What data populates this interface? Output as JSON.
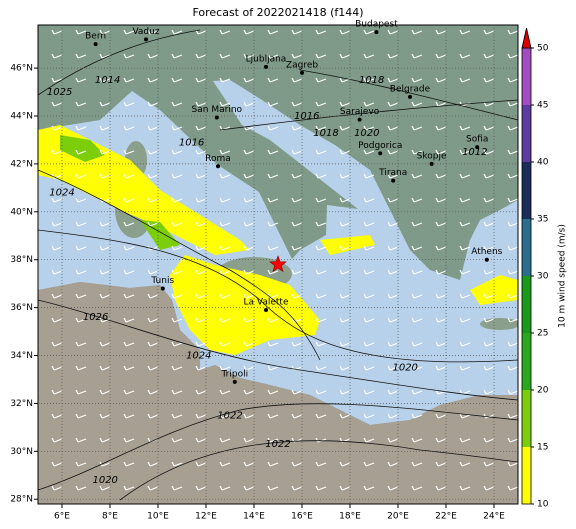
{
  "chart_data": {
    "type": "map",
    "title": "Forecast of 2022021418 (f144)",
    "xlim": [
      5,
      25
    ],
    "ylim": [
      27.8,
      47.8
    ],
    "xticks": [
      {
        "value": 6,
        "label": "6°E"
      },
      {
        "value": 8,
        "label": "8°E"
      },
      {
        "value": 10,
        "label": "10°E"
      },
      {
        "value": 12,
        "label": "12°E"
      },
      {
        "value": 14,
        "label": "14°E"
      },
      {
        "value": 16,
        "label": "16°E"
      },
      {
        "value": 18,
        "label": "18°E"
      },
      {
        "value": 20,
        "label": "20°E"
      },
      {
        "value": 22,
        "label": "22°E"
      },
      {
        "value": 24,
        "label": "24°E"
      }
    ],
    "yticks": [
      {
        "value": 28,
        "label": "28°N"
      },
      {
        "value": 30,
        "label": "30°N"
      },
      {
        "value": 32,
        "label": "32°N"
      },
      {
        "value": 34,
        "label": "34°N"
      },
      {
        "value": 36,
        "label": "36°N"
      },
      {
        "value": 38,
        "label": "38°N"
      },
      {
        "value": 40,
        "label": "40°N"
      },
      {
        "value": 42,
        "label": "42°N"
      },
      {
        "value": 44,
        "label": "44°N"
      },
      {
        "value": 46,
        "label": "46°N"
      }
    ],
    "grid": true,
    "colorbar": {
      "label": "10 m wind speed (m/s)",
      "ticks": [
        10,
        15,
        20,
        25,
        30,
        35,
        40,
        45,
        50
      ],
      "colors": [
        "#ffff00",
        "#7ccd0a",
        "#2ca81e",
        "#1a9a1a",
        "#2a6d8c",
        "#1c2d5c",
        "#5c3c9c",
        "#a24cc0"
      ],
      "extend_color": "#dd0000"
    },
    "marker": {
      "lon": 15,
      "lat": 37.8,
      "color": "#ff0000"
    },
    "cities": [
      {
        "name": "Bern",
        "lon": 7.4,
        "lat": 47.0
      },
      {
        "name": "Vaduz",
        "lon": 9.5,
        "lat": 47.2
      },
      {
        "name": "Budapest",
        "lon": 19.1,
        "lat": 47.5
      },
      {
        "name": "Ljubljana",
        "lon": 14.5,
        "lat": 46.05
      },
      {
        "name": "Zagreb",
        "lon": 16.0,
        "lat": 45.8
      },
      {
        "name": "Belgrade",
        "lon": 20.5,
        "lat": 44.8
      },
      {
        "name": "San Marino",
        "lon": 12.45,
        "lat": 43.94
      },
      {
        "name": "Sarajevo",
        "lon": 18.4,
        "lat": 43.85
      },
      {
        "name": "Roma",
        "lon": 12.5,
        "lat": 41.9
      },
      {
        "name": "Podgorica",
        "lon": 19.26,
        "lat": 42.44
      },
      {
        "name": "Skopje",
        "lon": 21.4,
        "lat": 42.0
      },
      {
        "name": "Sofia",
        "lon": 23.3,
        "lat": 42.7
      },
      {
        "name": "Tirana",
        "lon": 19.8,
        "lat": 41.3
      },
      {
        "name": "Athens",
        "lon": 23.7,
        "lat": 38.0
      },
      {
        "name": "Tunis",
        "lon": 10.2,
        "lat": 36.8
      },
      {
        "name": "La Valette",
        "lon": 14.5,
        "lat": 35.9
      },
      {
        "name": "Tripoli",
        "lon": 13.2,
        "lat": 32.9
      }
    ],
    "contour_labels": [
      {
        "value": 1025,
        "lon": 5.9,
        "lat": 45.0
      },
      {
        "value": 1014,
        "lon": 7.9,
        "lat": 45.5
      },
      {
        "value": 1016,
        "lon": 11.4,
        "lat": 42.9
      },
      {
        "value": 1018,
        "lon": 18.9,
        "lat": 45.5
      },
      {
        "value": 1016,
        "lon": 16.2,
        "lat": 44.0
      },
      {
        "value": 1018,
        "lon": 17.0,
        "lat": 43.3
      },
      {
        "value": 1020,
        "lon": 18.7,
        "lat": 43.3
      },
      {
        "value": 1012,
        "lon": 23.2,
        "lat": 42.5
      },
      {
        "value": 1024,
        "lon": 6.0,
        "lat": 40.8
      },
      {
        "value": 1026,
        "lon": 7.4,
        "lat": 35.6
      },
      {
        "value": 1024,
        "lon": 11.7,
        "lat": 34.0
      },
      {
        "value": 1020,
        "lon": 20.3,
        "lat": 33.5
      },
      {
        "value": 1022,
        "lon": 13.0,
        "lat": 31.5
      },
      {
        "value": 1022,
        "lon": 15.0,
        "lat": 30.3
      },
      {
        "value": 1020,
        "lon": 7.8,
        "lat": 28.8
      }
    ]
  }
}
